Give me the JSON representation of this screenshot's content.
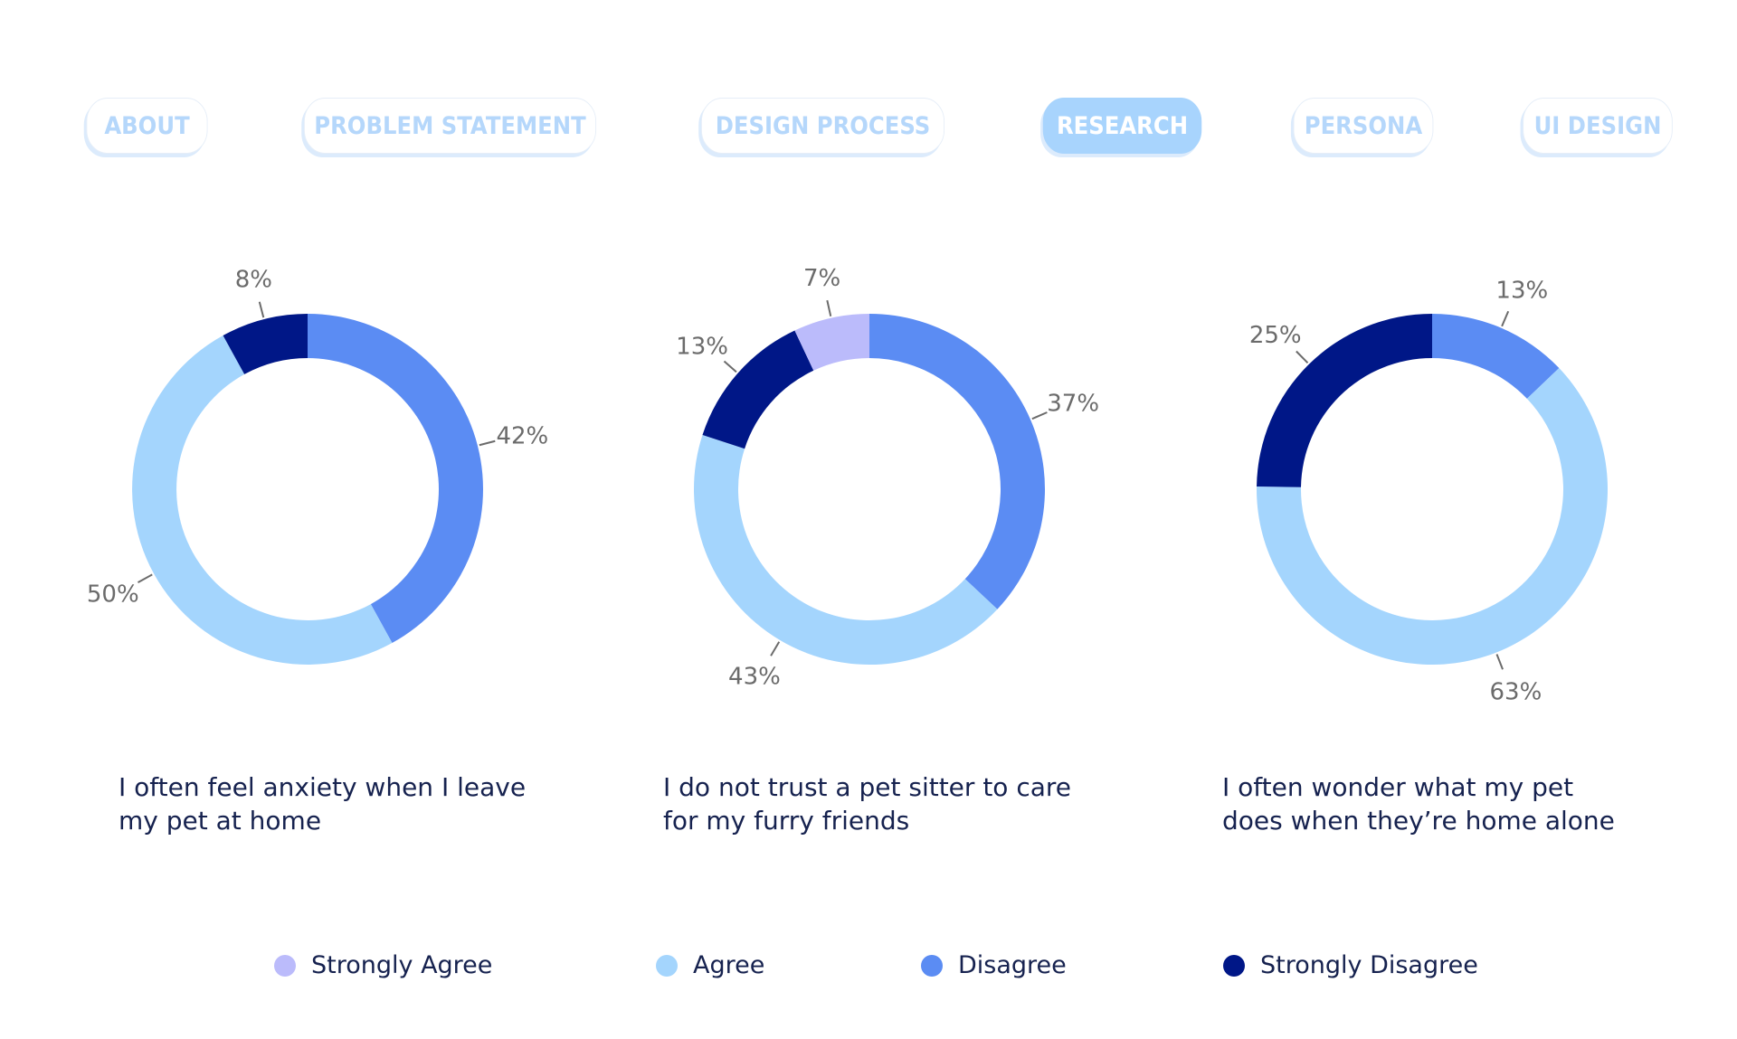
{
  "nav": {
    "items": [
      {
        "label": "ABOUT",
        "active": false
      },
      {
        "label": "PROBLEM STATEMENT",
        "active": false
      },
      {
        "label": "DESIGN PROCESS",
        "active": false
      },
      {
        "label": "RESEARCH",
        "active": true
      },
      {
        "label": "PERSONA",
        "active": false
      },
      {
        "label": "UI DESIGN",
        "active": false
      }
    ]
  },
  "colors": {
    "strongly_agree": "#bbbbfb",
    "agree": "#a4d5fd",
    "disagree": "#5b8cf3",
    "strongly_disagree": "#001787",
    "nav_text": "#b5d7fb",
    "nav_active_bg": "#a8d4fd",
    "text_dark": "#16224f",
    "label_gray": "#6b6b6b"
  },
  "chart_data": [
    {
      "type": "pie",
      "style": "donut",
      "title": "I often feel anxiety when I leave my pet at home",
      "caption_lines": [
        "I often feel anxiety when I leave",
        "my pet at home"
      ],
      "slices": [
        {
          "category": "Disagree",
          "value": 42,
          "label": "42%"
        },
        {
          "category": "Agree",
          "value": 50,
          "label": "50%"
        },
        {
          "category": "Strongly Disagree",
          "value": 8,
          "label": "8%"
        }
      ]
    },
    {
      "type": "pie",
      "style": "donut",
      "title": "I do not trust a pet sitter to care for my furry friends",
      "caption_lines": [
        "I do not trust a pet sitter to care",
        "for my furry friends"
      ],
      "slices": [
        {
          "category": "Disagree",
          "value": 37,
          "label": "37%"
        },
        {
          "category": "Agree",
          "value": 43,
          "label": "43%"
        },
        {
          "category": "Strongly Disagree",
          "value": 13,
          "label": "13%"
        },
        {
          "category": "Strongly Agree",
          "value": 7,
          "label": "7%"
        }
      ]
    },
    {
      "type": "pie",
      "style": "donut",
      "title": "I often wonder what my pet does when they’re home alone",
      "caption_lines": [
        "I often wonder what my pet",
        "does when they’re home alone"
      ],
      "slices": [
        {
          "category": "Disagree",
          "value": 13,
          "label": "13%"
        },
        {
          "category": "Agree",
          "value": 63,
          "label": "63%"
        },
        {
          "category": "Strongly Disagree",
          "value": 25,
          "label": "25%"
        }
      ]
    }
  ],
  "legend": {
    "placement": "bottom",
    "items": [
      {
        "label": "Strongly Agree",
        "key": "strongly_agree"
      },
      {
        "label": "Agree",
        "key": "agree"
      },
      {
        "label": "Disagree",
        "key": "disagree"
      },
      {
        "label": "Strongly Disagree",
        "key": "strongly_disagree"
      }
    ]
  }
}
